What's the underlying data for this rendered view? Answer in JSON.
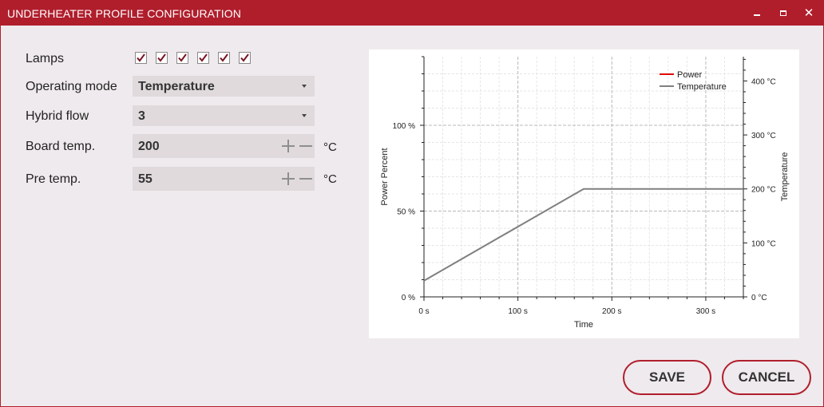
{
  "window": {
    "title": "UNDERHEATER PROFILE CONFIGURATION",
    "minimize": "minimize",
    "maximize": "maximize",
    "close": "close"
  },
  "form": {
    "lamps": {
      "label": "Lamps",
      "checked": [
        true,
        true,
        true,
        true,
        true,
        true
      ]
    },
    "operating_mode": {
      "label": "Operating mode",
      "value": "Temperature"
    },
    "hybrid_flow": {
      "label": "Hybrid flow",
      "value": "3"
    },
    "board_temp": {
      "label": "Board temp.",
      "value": "200",
      "unit": "°C"
    },
    "pre_temp": {
      "label": "Pre temp.",
      "value": "55",
      "unit": "°C"
    }
  },
  "chart_data": {
    "type": "line",
    "xlabel": "Time",
    "ylabel_left": "Power Percent",
    "ylabel_right": "Temperature",
    "xlim": [
      0,
      340
    ],
    "ylim_left": [
      0,
      140
    ],
    "ylim_right": [
      0,
      445
    ],
    "x_ticks": [
      "0 s",
      "100 s",
      "200 s",
      "300 s"
    ],
    "y_left_ticks": [
      "0 %",
      "50 %",
      "100 %"
    ],
    "y_right_ticks": [
      "0 °C",
      "100 °C",
      "200 °C",
      "300 °C",
      "400 °C"
    ],
    "legend_position": "top-right",
    "grid": true,
    "series": [
      {
        "name": "Power",
        "color": "#e00000",
        "x": [],
        "y": []
      },
      {
        "name": "Temperature",
        "color": "#808080",
        "axis": "right",
        "x": [
          0,
          170,
          340
        ],
        "y": [
          30,
          200,
          200
        ]
      }
    ]
  },
  "buttons": {
    "save": "SAVE",
    "cancel": "CANCEL"
  },
  "colors": {
    "accent": "#b01e2c",
    "background": "#efeaed",
    "field": "#e0dadd"
  }
}
